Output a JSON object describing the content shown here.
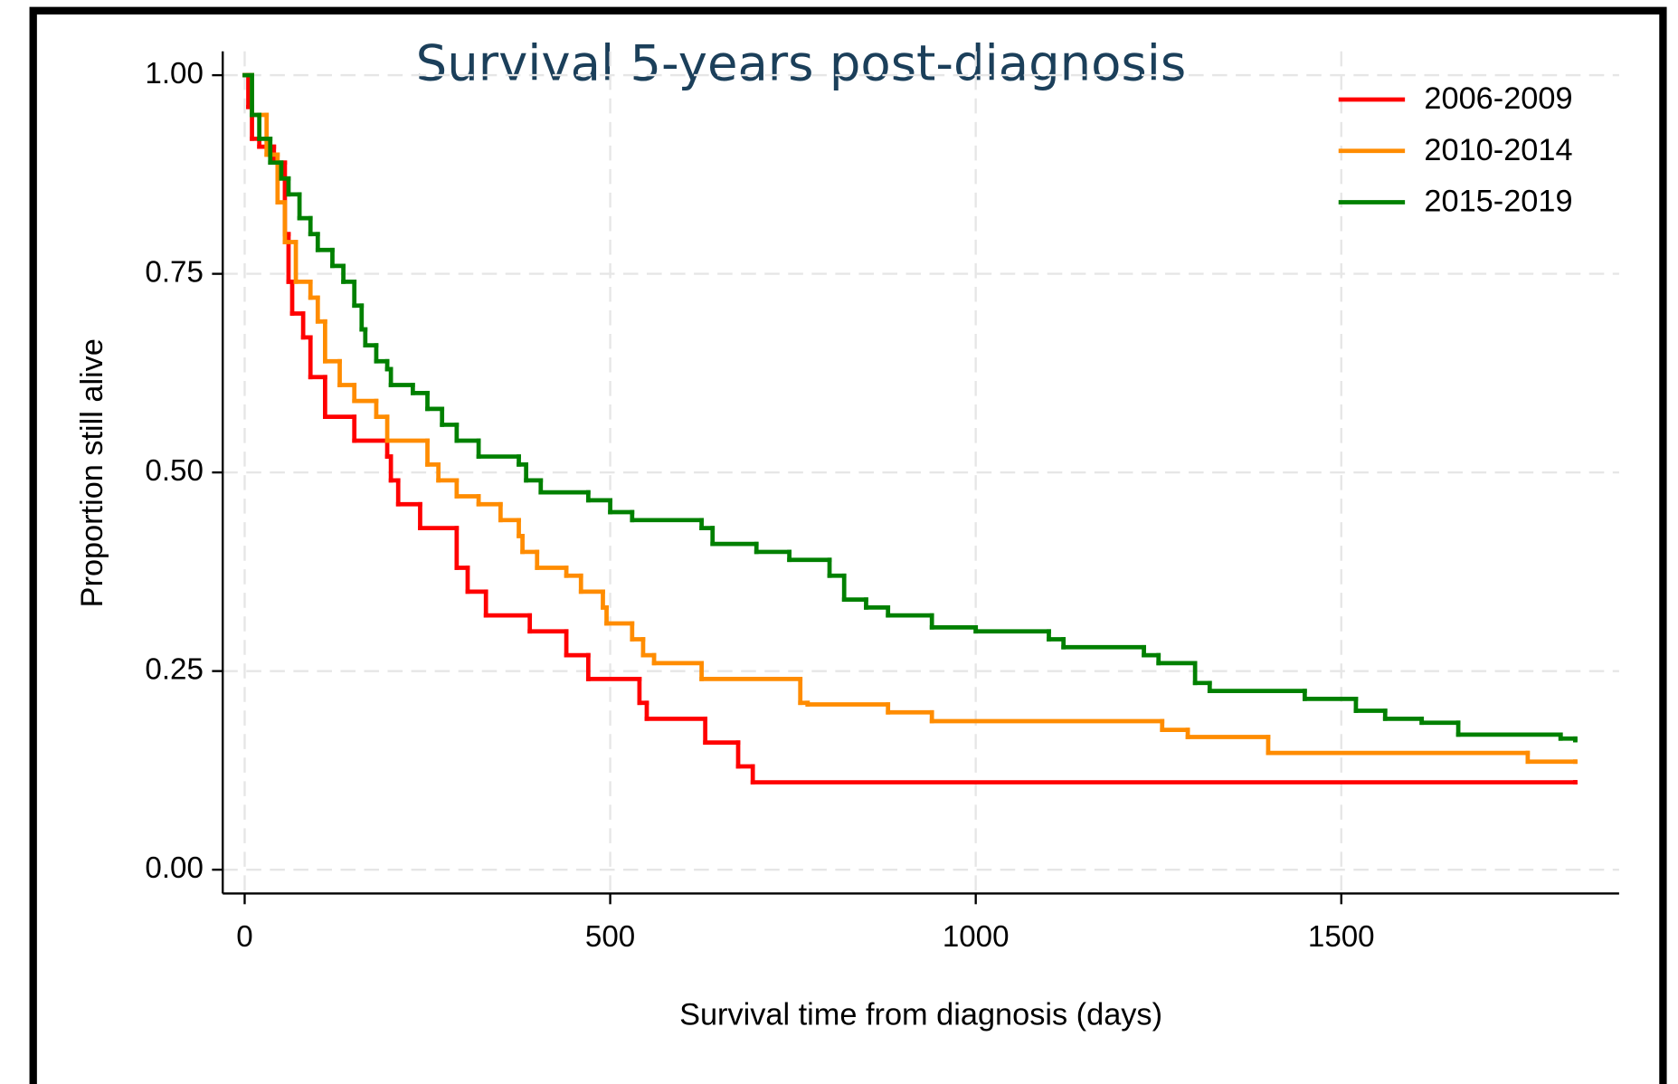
{
  "chart_data": {
    "type": "step",
    "title": "Survival 5-years post-diagnosis",
    "x_label": "Survival time from diagnosis (days)",
    "y_label": "Proportion still alive",
    "xlim": [
      -30,
      1880
    ],
    "ylim": [
      -0.03,
      1.03
    ],
    "xticks": [
      0,
      500,
      1000,
      1500
    ],
    "yticks": [
      {
        "value": 0,
        "label": "0.00"
      },
      {
        "value": 0.25,
        "label": "0.25"
      },
      {
        "value": 0.5,
        "label": "0.50"
      },
      {
        "value": 0.75,
        "label": "0.75"
      },
      {
        "value": 1,
        "label": "1.00"
      }
    ],
    "grid": true,
    "legend": "top-right",
    "series": [
      {
        "name": "2006-2009",
        "color": "#ff0000",
        "x": [
          0,
          5,
          10,
          20,
          40,
          55,
          60,
          65,
          80,
          90,
          110,
          150,
          195,
          200,
          210,
          240,
          290,
          305,
          330,
          390,
          440,
          470,
          540,
          550,
          630,
          675,
          695,
          1820
        ],
        "values": [
          1.0,
          0.96,
          0.92,
          0.91,
          0.89,
          0.8,
          0.74,
          0.7,
          0.67,
          0.62,
          0.57,
          0.54,
          0.52,
          0.49,
          0.46,
          0.43,
          0.38,
          0.35,
          0.32,
          0.3,
          0.27,
          0.24,
          0.21,
          0.19,
          0.16,
          0.13,
          0.11,
          0.11
        ]
      },
      {
        "name": "2010-2014",
        "color": "#ff8c00",
        "x": [
          0,
          10,
          30,
          45,
          55,
          70,
          90,
          100,
          110,
          130,
          150,
          180,
          195,
          250,
          265,
          290,
          320,
          350,
          375,
          380,
          400,
          440,
          460,
          490,
          495,
          530,
          545,
          560,
          625,
          760,
          770,
          880,
          940,
          1255,
          1290,
          1400,
          1755,
          1820
        ],
        "values": [
          1.0,
          0.95,
          0.9,
          0.84,
          0.79,
          0.74,
          0.72,
          0.69,
          0.64,
          0.61,
          0.59,
          0.57,
          0.54,
          0.51,
          0.49,
          0.47,
          0.46,
          0.44,
          0.42,
          0.4,
          0.38,
          0.37,
          0.35,
          0.33,
          0.31,
          0.29,
          0.27,
          0.26,
          0.24,
          0.21,
          0.208,
          0.198,
          0.187,
          0.176,
          0.167,
          0.147,
          0.136,
          0.136
        ]
      },
      {
        "name": "2015-2019",
        "color": "#008000",
        "x": [
          0,
          10,
          20,
          35,
          50,
          60,
          75,
          90,
          100,
          120,
          135,
          150,
          160,
          165,
          180,
          195,
          200,
          230,
          250,
          270,
          290,
          320,
          375,
          385,
          405,
          470,
          500,
          530,
          625,
          640,
          700,
          745,
          800,
          820,
          850,
          880,
          940,
          1000,
          1100,
          1120,
          1230,
          1250,
          1300,
          1320,
          1450,
          1520,
          1560,
          1610,
          1660,
          1800,
          1820
        ],
        "values": [
          1.0,
          0.95,
          0.92,
          0.89,
          0.87,
          0.85,
          0.82,
          0.8,
          0.78,
          0.76,
          0.74,
          0.71,
          0.68,
          0.66,
          0.64,
          0.63,
          0.61,
          0.6,
          0.58,
          0.56,
          0.54,
          0.52,
          0.51,
          0.49,
          0.475,
          0.465,
          0.45,
          0.44,
          0.43,
          0.41,
          0.4,
          0.39,
          0.37,
          0.34,
          0.33,
          0.32,
          0.305,
          0.3,
          0.29,
          0.28,
          0.27,
          0.26,
          0.235,
          0.225,
          0.215,
          0.2,
          0.19,
          0.185,
          0.17,
          0.165,
          0.163
        ]
      }
    ]
  }
}
